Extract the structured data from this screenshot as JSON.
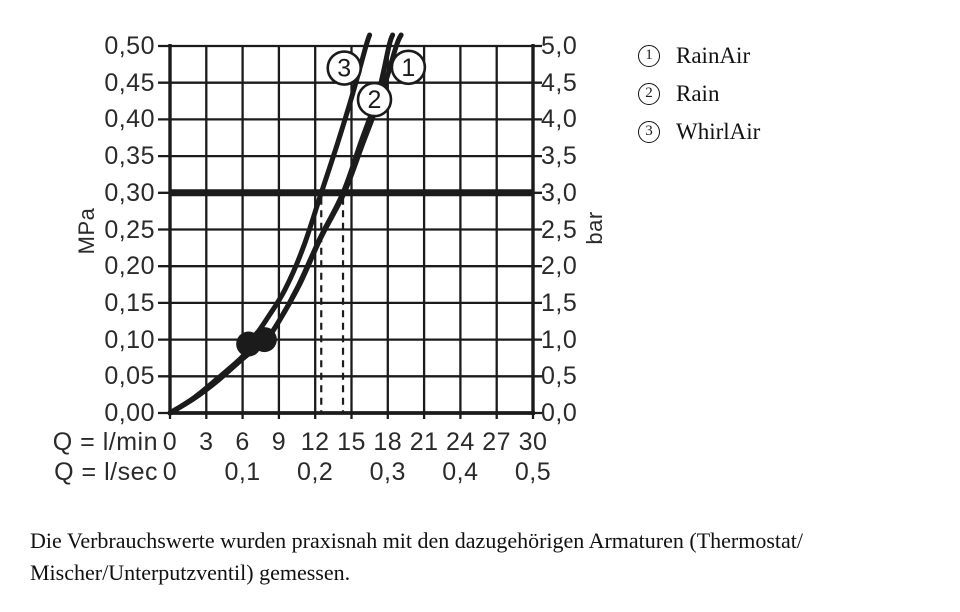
{
  "chart_data": {
    "type": "line",
    "x_axis": {
      "label_lmin": "Q = l/min",
      "label_lsec": "Q = l/sec",
      "ticks_lmin": [
        "0",
        "3",
        "6",
        "9",
        "12",
        "15",
        "18",
        "21",
        "24",
        "27",
        "30"
      ],
      "ticks_lsec": [
        "0",
        "0,1",
        "0,2",
        "0,3",
        "0,4",
        "0,5"
      ],
      "range_lmin": [
        0,
        30
      ]
    },
    "y_axis_left": {
      "unit": "MPa",
      "ticks": [
        "0,50",
        "0,45",
        "0,40",
        "0,35",
        "0,30",
        "0,25",
        "0,20",
        "0,15",
        "0,10",
        "0,05",
        "0,00"
      ],
      "range_mpa": [
        0,
        0.5
      ]
    },
    "y_axis_right": {
      "unit": "bar",
      "ticks": [
        "5,0",
        "4,5",
        "4,0",
        "3,5",
        "3,0",
        "2,5",
        "2,0",
        "1,5",
        "1,0",
        "0,5",
        "0,0"
      ],
      "range_bar": [
        0,
        5
      ]
    },
    "grid": true,
    "reference_line_mpa": 0.3,
    "dashed_flow_markers_lmin": [
      12.5,
      14.3
    ],
    "measurement_dots_lmin_mpa": [
      [
        6.5,
        0.094
      ],
      [
        7.8,
        0.1
      ]
    ],
    "series": [
      {
        "id": "1",
        "name": "RainAir",
        "marker_lmin_mpa": [
          19.7,
          0.471
        ],
        "points_lmin_mpa": [
          [
            0,
            0
          ],
          [
            2,
            0.02
          ],
          [
            4,
            0.045
          ],
          [
            6,
            0.074
          ],
          [
            7.9,
            0.1
          ],
          [
            9,
            0.125
          ],
          [
            10.7,
            0.175
          ],
          [
            12.5,
            0.24
          ],
          [
            14.4,
            0.3
          ],
          [
            16,
            0.37
          ],
          [
            17.6,
            0.44
          ],
          [
            18.7,
            0.5
          ],
          [
            19.1,
            0.515
          ]
        ]
      },
      {
        "id": "2",
        "name": "Rain",
        "marker_lmin_mpa": [
          16.9,
          0.427
        ],
        "points_lmin_mpa": [
          [
            0,
            0
          ],
          [
            2,
            0.02
          ],
          [
            4,
            0.045
          ],
          [
            6,
            0.074
          ],
          [
            7.9,
            0.1
          ],
          [
            9,
            0.125
          ],
          [
            10.6,
            0.173
          ],
          [
            12.4,
            0.238
          ],
          [
            14.3,
            0.3
          ],
          [
            15.8,
            0.37
          ],
          [
            17.2,
            0.435
          ],
          [
            18.1,
            0.5
          ],
          [
            18.4,
            0.515
          ]
        ]
      },
      {
        "id": "3",
        "name": "WhirlAir",
        "marker_lmin_mpa": [
          14.4,
          0.47
        ],
        "points_lmin_mpa": [
          [
            0,
            0
          ],
          [
            2,
            0.021
          ],
          [
            4,
            0.048
          ],
          [
            6,
            0.077
          ],
          [
            6.6,
            0.094
          ],
          [
            8,
            0.128
          ],
          [
            9.5,
            0.168
          ],
          [
            11,
            0.225
          ],
          [
            12.5,
            0.3
          ],
          [
            13.8,
            0.365
          ],
          [
            15.1,
            0.435
          ],
          [
            16.2,
            0.5
          ],
          [
            16.5,
            0.515
          ]
        ]
      }
    ]
  },
  "legend": {
    "items": [
      {
        "number": "1",
        "label": "RainAir"
      },
      {
        "number": "2",
        "label": "Rain"
      },
      {
        "number": "3",
        "label": "WhirlAir"
      }
    ]
  },
  "caption": {
    "line1": "Die Verbrauchswerte wurden praxisnah mit den dazugehörigen Armaturen (Thermostat/",
    "line2": "Mischer/Unterputzventil) gemessen."
  }
}
